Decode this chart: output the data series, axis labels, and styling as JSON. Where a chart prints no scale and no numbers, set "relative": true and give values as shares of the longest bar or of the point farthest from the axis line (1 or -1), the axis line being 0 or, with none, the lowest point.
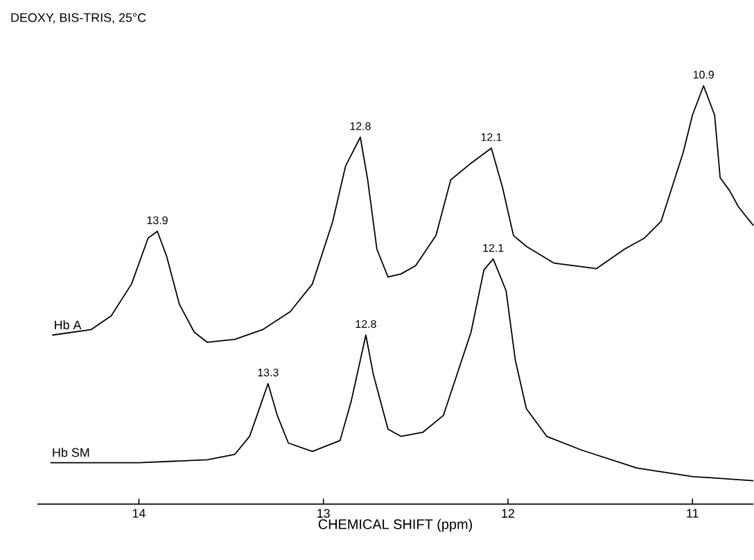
{
  "chart_data": {
    "type": "line",
    "title": "DEOXY, BIS-TRIS, 25°C",
    "xlabel": "CHEMICAL SHIFT (ppm)",
    "relative": true,
    "xlim": [
      14.55,
      10.67
    ],
    "xticks": [
      14,
      13,
      12,
      11
    ],
    "series": [
      {
        "name": "Hb A",
        "color": "#000000",
        "x": [
          14.47,
          14.26,
          14.15,
          14.04,
          13.95,
          13.9,
          13.85,
          13.78,
          13.7,
          13.63,
          13.48,
          13.33,
          13.18,
          13.06,
          12.95,
          12.88,
          12.8,
          12.76,
          12.71,
          12.65,
          12.58,
          12.5,
          12.39,
          12.31,
          12.2,
          12.09,
          12.03,
          11.97,
          11.9,
          11.75,
          11.52,
          11.37,
          11.26,
          11.17,
          11.05,
          11.0,
          10.94,
          10.88,
          10.85,
          10.8,
          10.75,
          10.67
        ],
        "values": [
          0.404,
          0.417,
          0.45,
          0.526,
          0.636,
          0.652,
          0.593,
          0.477,
          0.411,
          0.387,
          0.394,
          0.417,
          0.46,
          0.526,
          0.675,
          0.808,
          0.877,
          0.775,
          0.609,
          0.543,
          0.55,
          0.57,
          0.642,
          0.775,
          0.815,
          0.851,
          0.758,
          0.642,
          0.616,
          0.576,
          0.563,
          0.609,
          0.636,
          0.676,
          0.841,
          0.93,
          1.0,
          0.93,
          0.78,
          0.75,
          0.71,
          0.666
        ]
      },
      {
        "name": "Hb SM",
        "color": "#000000",
        "x": [
          14.48,
          14.0,
          13.63,
          13.48,
          13.4,
          13.36,
          13.3,
          13.25,
          13.19,
          13.06,
          12.91,
          12.85,
          12.77,
          12.73,
          12.65,
          12.58,
          12.46,
          12.35,
          12.2,
          12.13,
          12.08,
          12.01,
          11.96,
          11.9,
          11.79,
          11.6,
          11.3,
          11.0,
          10.67
        ],
        "values": [
          0.099,
          0.099,
          0.106,
          0.119,
          0.162,
          0.212,
          0.288,
          0.212,
          0.146,
          0.126,
          0.152,
          0.245,
          0.404,
          0.311,
          0.179,
          0.162,
          0.172,
          0.212,
          0.411,
          0.56,
          0.586,
          0.51,
          0.344,
          0.228,
          0.162,
          0.129,
          0.086,
          0.066,
          0.056
        ]
      }
    ],
    "annotations": [
      {
        "text": "13.9",
        "x": 13.9,
        "y": 0.652
      },
      {
        "text": "12.8",
        "x": 12.8,
        "y": 0.877
      },
      {
        "text": "12.1",
        "x": 12.09,
        "y": 0.851
      },
      {
        "text": "10.9",
        "x": 10.94,
        "y": 1.0
      },
      {
        "text": "13.3",
        "x": 13.3,
        "y": 0.288
      },
      {
        "text": "12.8",
        "x": 12.77,
        "y": 0.404
      },
      {
        "text": "12.1",
        "x": 12.08,
        "y": 0.586
      }
    ]
  }
}
